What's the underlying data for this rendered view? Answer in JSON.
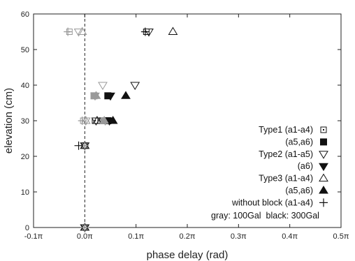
{
  "chart_data": {
    "type": "scatter",
    "xlabel": "phase delay (rad)",
    "ylabel": "elevation (cm)",
    "xlim": [
      -0.1,
      0.5
    ],
    "ylim": [
      0,
      60
    ],
    "x_unit": "π",
    "x_ticks": [
      {
        "value": -0.1,
        "label": "-0.1π"
      },
      {
        "value": 0.0,
        "label": "0.0π"
      },
      {
        "value": 0.1,
        "label": "0.1π"
      },
      {
        "value": 0.2,
        "label": "0.2π"
      },
      {
        "value": 0.3,
        "label": "0.3π"
      },
      {
        "value": 0.4,
        "label": "0.4π"
      },
      {
        "value": 0.5,
        "label": "0.5π"
      }
    ],
    "y_ticks": [
      {
        "value": 0,
        "label": "0"
      },
      {
        "value": 10,
        "label": "10"
      },
      {
        "value": 20,
        "label": "20"
      },
      {
        "value": 30,
        "label": "30"
      },
      {
        "value": 40,
        "label": "40"
      },
      {
        "value": 50,
        "label": "50"
      },
      {
        "value": 60,
        "label": "60"
      }
    ],
    "reference_line": {
      "x": 0,
      "style": "dashed"
    },
    "grid": false,
    "legend_position": "bottom-right",
    "note": "gray: 100Gal  black: 300Gal",
    "colors": {
      "gray": "#9a9a9a",
      "black": "#111111"
    },
    "series": [
      {
        "name": "Type1 (a1-a4)",
        "marker": "open-square",
        "color": "gray",
        "points": [
          [
            -0.03,
            55
          ],
          [
            -0.003,
            30
          ],
          [
            0.0,
            23
          ],
          [
            0.0,
            0
          ]
        ]
      },
      {
        "name": "Type1 (a1-a4)",
        "marker": "open-square",
        "color": "black",
        "points": [
          [
            0.12,
            55
          ],
          [
            0.02,
            30
          ],
          [
            0.0,
            23
          ],
          [
            0.0,
            0
          ]
        ]
      },
      {
        "name": "(a5,a6)",
        "marker": "filled-square",
        "color": "gray",
        "points": [
          [
            0.018,
            37
          ],
          [
            0.035,
            30
          ]
        ]
      },
      {
        "name": "(a5,a6)",
        "marker": "filled-square",
        "color": "black",
        "points": [
          [
            0.045,
            37
          ],
          [
            0.045,
            30
          ]
        ]
      },
      {
        "name": "Type2 (a1-a5)",
        "marker": "open-triangle-down",
        "color": "gray",
        "points": [
          [
            -0.012,
            55
          ],
          [
            0.035,
            40
          ],
          [
            0.002,
            30
          ],
          [
            0.0,
            23
          ],
          [
            0.0,
            0
          ]
        ]
      },
      {
        "name": "Type2 (a1-a5)",
        "marker": "open-triangle-down",
        "color": "black",
        "points": [
          [
            0.125,
            55
          ],
          [
            0.098,
            40
          ],
          [
            0.022,
            30
          ],
          [
            0.0,
            23
          ],
          [
            0.0,
            0
          ]
        ]
      },
      {
        "name": "(a6)",
        "marker": "filled-triangle-down",
        "color": "gray",
        "points": [
          [
            0.02,
            37
          ],
          [
            0.04,
            30
          ]
        ]
      },
      {
        "name": "(a6)",
        "marker": "filled-triangle-down",
        "color": "black",
        "points": [
          [
            0.05,
            37
          ],
          [
            0.048,
            30
          ]
        ]
      },
      {
        "name": "Type3 (a1-a4)",
        "marker": "open-triangle-up",
        "color": "gray",
        "points": [
          [
            -0.005,
            55
          ],
          [
            0.002,
            30
          ],
          [
            0.0,
            23
          ],
          [
            0.0,
            0
          ]
        ]
      },
      {
        "name": "Type3 (a1-a4)",
        "marker": "open-triangle-up",
        "color": "black",
        "points": [
          [
            0.172,
            55
          ],
          [
            0.024,
            30
          ],
          [
            0.0,
            23
          ],
          [
            0.0,
            0
          ]
        ]
      },
      {
        "name": "(a5,a6)",
        "marker": "filled-triangle-up",
        "color": "gray",
        "points": [
          [
            0.022,
            37
          ],
          [
            0.038,
            30
          ]
        ]
      },
      {
        "name": "(a5,a6)",
        "marker": "filled-triangle-up",
        "color": "black",
        "points": [
          [
            0.08,
            37
          ],
          [
            0.055,
            30
          ]
        ]
      },
      {
        "name": "without block (a1-a4)",
        "marker": "plus",
        "color": "gray",
        "points": [
          [
            -0.033,
            55
          ],
          [
            -0.005,
            30
          ],
          [
            0.0,
            23
          ],
          [
            0.0,
            0
          ]
        ]
      },
      {
        "name": "without block (a1-a4)",
        "marker": "plus",
        "color": "black",
        "points": [
          [
            0.118,
            55
          ],
          [
            -0.012,
            23
          ]
        ]
      }
    ],
    "legend": [
      {
        "label": "Type1 (a1-a4)",
        "marker": "open-square"
      },
      {
        "label": "(a5,a6)",
        "marker": "filled-square"
      },
      {
        "label": "Type2 (a1-a5)",
        "marker": "open-triangle-down"
      },
      {
        "label": "(a6)",
        "marker": "filled-triangle-down"
      },
      {
        "label": "Type3 (a1-a4)",
        "marker": "open-triangle-up"
      },
      {
        "label": "(a5,a6)",
        "marker": "filled-triangle-up"
      },
      {
        "label": "without block (a1-a4)",
        "marker": "plus"
      }
    ]
  }
}
